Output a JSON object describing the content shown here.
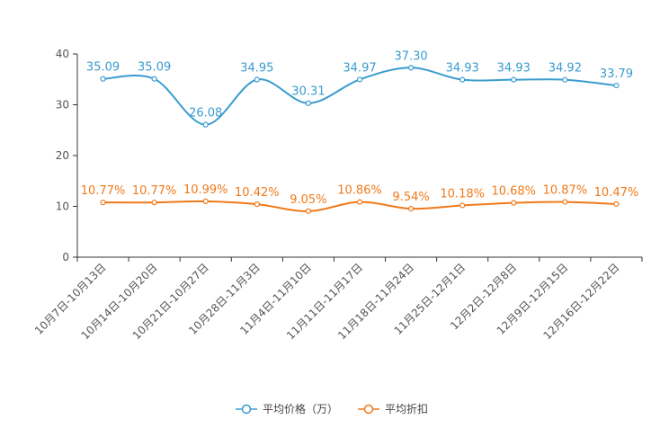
{
  "chart_data": {
    "type": "line",
    "title": "",
    "xlabel": "",
    "ylabel": "",
    "ylim": [
      0,
      40
    ],
    "yticks": [
      0,
      10,
      20,
      30,
      40
    ],
    "grid": false,
    "legend_position": "bottom-center",
    "categories": [
      "10月7日-10月13日",
      "10月14日-10月20日",
      "10月21日-10月27日",
      "10月28日-11月3日",
      "11月4日-11月10日",
      "11月11日-11月17日",
      "11月18日-11月24日",
      "11月25日-12月1日",
      "12月2日-12月8日",
      "12月9日-12月15日",
      "12月16日-12月22日"
    ],
    "series": [
      {
        "name": "平均价格（万）",
        "color": "#3a9ccf",
        "values": [
          35.09,
          35.09,
          26.08,
          34.95,
          30.31,
          34.97,
          37.3,
          34.93,
          34.93,
          34.92,
          33.79
        ],
        "labels": [
          "35.09",
          "35.09",
          "26.08",
          "34.95",
          "30.31",
          "34.97",
          "37.30",
          "34.93",
          "34.93",
          "34.92",
          "33.79"
        ]
      },
      {
        "name": "平均折扣",
        "color": "#f07a1a",
        "values": [
          10.77,
          10.77,
          10.99,
          10.42,
          9.05,
          10.86,
          9.54,
          10.18,
          10.68,
          10.87,
          10.47
        ],
        "labels": [
          "10.77%",
          "10.77%",
          "10.99%",
          "10.42%",
          "9.05%",
          "10.86%",
          "9.54%",
          "10.18%",
          "10.68%",
          "10.87%",
          "10.47%"
        ]
      }
    ]
  }
}
